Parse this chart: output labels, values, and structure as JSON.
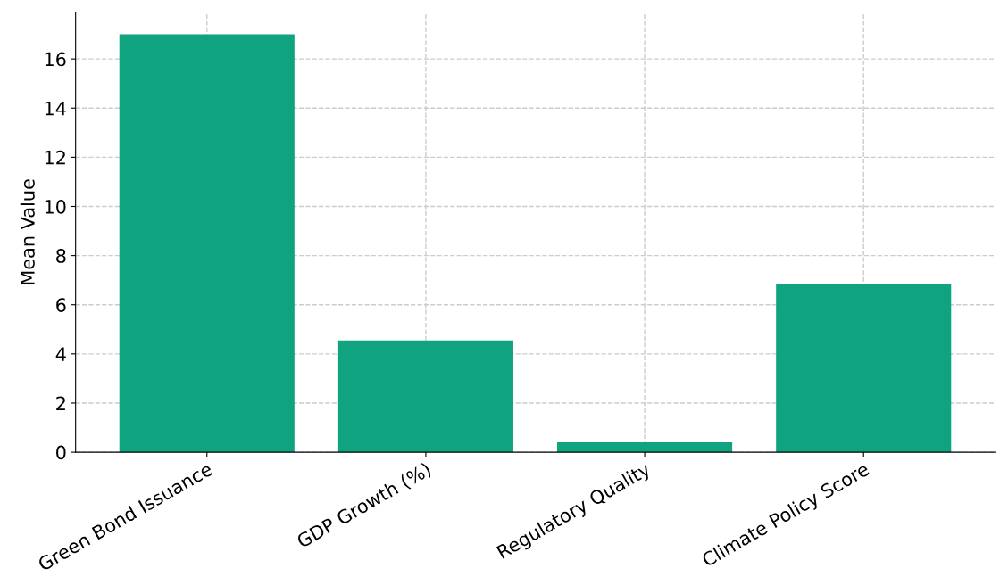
{
  "chart_data": {
    "type": "bar",
    "ylabel": "Mean Value",
    "categories": [
      "Green Bond Issuance",
      "GDP Growth (%)",
      "Regulatory Quality",
      "Climate Policy Score"
    ],
    "values": [
      17.0,
      4.55,
      0.4,
      6.85
    ],
    "color": "#10a37f",
    "ylim": [
      0,
      17.9
    ],
    "yticks": [
      0,
      2,
      4,
      6,
      8,
      10,
      12,
      14,
      16
    ],
    "grid": true
  }
}
